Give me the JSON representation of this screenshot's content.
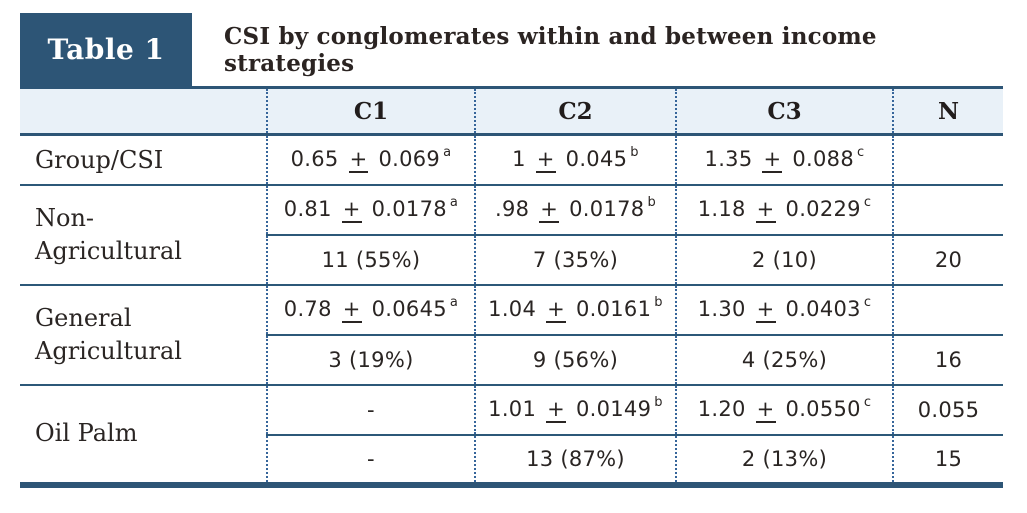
{
  "badge": {
    "label": "Table 1"
  },
  "caption": "CSI by conglomerates within and between income strategies",
  "colors": {
    "navy": "#2d5576",
    "header_background": "#e9f1f8",
    "rule_line": "#2c5878",
    "dotted_separator": "#36659a",
    "text": "#2a2523"
  },
  "table": {
    "columns": [
      "",
      "C1",
      "C2",
      "C3",
      "N"
    ],
    "groups": [
      {
        "label": "Group/CSI",
        "rows": [
          [
            {
              "text": "0.65 ± 0.069",
              "sup": "a"
            },
            {
              "text": "1 ± 0.045",
              "sup": "b"
            },
            {
              "text": "1.35 ± 0.088",
              "sup": "c"
            },
            {
              "text": ""
            }
          ]
        ]
      },
      {
        "label": "Non-Agricultural",
        "rows": [
          [
            {
              "text": "0.81 ± 0.0178",
              "sup": "a"
            },
            {
              "text": ".98 ± 0.0178",
              "sup": "b"
            },
            {
              "text": "1.18 ± 0.0229",
              "sup": "c"
            },
            {
              "text": ""
            }
          ],
          [
            {
              "text": "11 (55%)"
            },
            {
              "text": "7 (35%)"
            },
            {
              "text": "2 (10)"
            },
            {
              "text": "20"
            }
          ]
        ]
      },
      {
        "label": "General Agricultural",
        "rows": [
          [
            {
              "text": "0.78 ± 0.0645",
              "sup": "a"
            },
            {
              "text": "1.04 ± 0.0161",
              "sup": "b"
            },
            {
              "text": "1.30 ± 0.0403",
              "sup": "c"
            },
            {
              "text": ""
            }
          ],
          [
            {
              "text": "3 (19%)"
            },
            {
              "text": "9 (56%)"
            },
            {
              "text": "4 (25%)"
            },
            {
              "text": "16"
            }
          ]
        ]
      },
      {
        "label": "Oil Palm",
        "rows": [
          [
            {
              "text": "-"
            },
            {
              "text": "1.01 ± 0.0149",
              "sup": "b"
            },
            {
              "text": "1.20 ± 0.0550",
              "sup": "c"
            },
            {
              "text": "0.055"
            }
          ],
          [
            {
              "text": "-"
            },
            {
              "text": "13 (87%)"
            },
            {
              "text": "2 (13%)"
            },
            {
              "text": "15"
            }
          ]
        ]
      }
    ]
  }
}
